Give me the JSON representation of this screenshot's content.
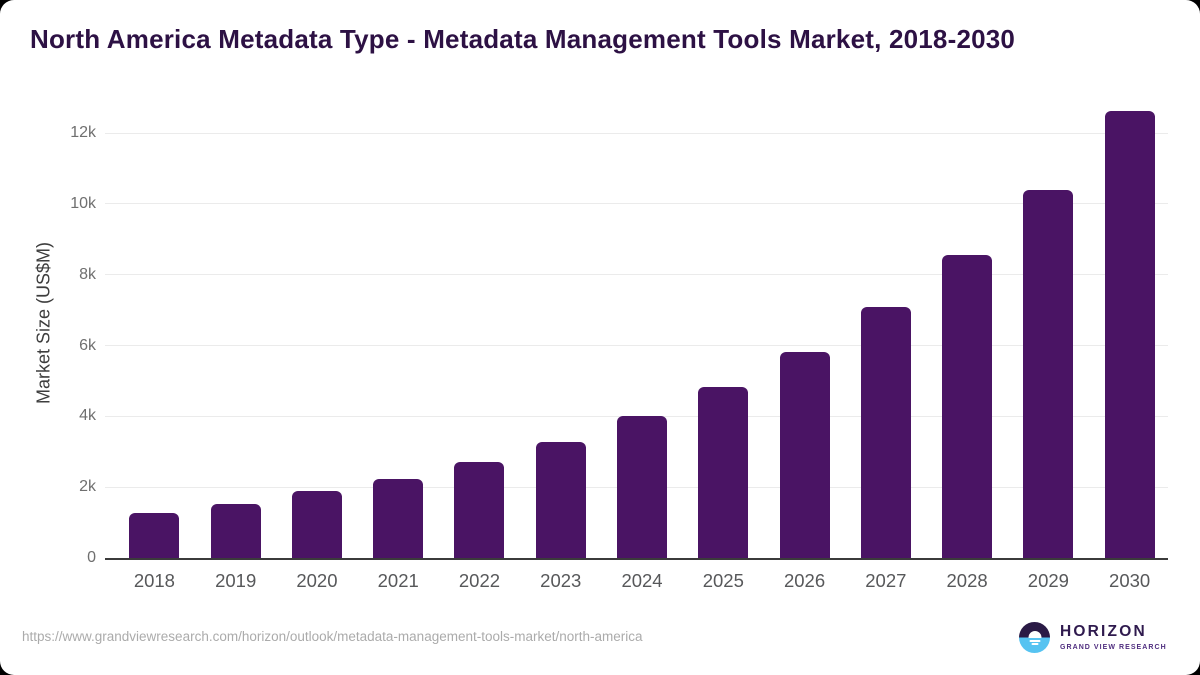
{
  "title": "North America Metadata Type - Metadata Management Tools Market, 2018-2030",
  "chart_data": {
    "type": "bar",
    "title": "North America Metadata Type - Metadata Management Tools Market, 2018-2030",
    "categories": [
      "2018",
      "2019",
      "2020",
      "2021",
      "2022",
      "2023",
      "2024",
      "2025",
      "2026",
      "2027",
      "2028",
      "2029",
      "2030"
    ],
    "values": [
      1280,
      1520,
      1880,
      2240,
      2720,
      3270,
      4000,
      4840,
      5830,
      7090,
      8550,
      10390,
      12620
    ],
    "xlabel": "",
    "ylabel": "Market Size (US$M)",
    "ylim": [
      0,
      12000
    ],
    "ytick_labels": [
      "0",
      "2k",
      "4k",
      "6k",
      "8k",
      "10k",
      "12k"
    ],
    "ytick_values": [
      0,
      2000,
      4000,
      6000,
      8000,
      10000,
      12000
    ],
    "grid": true,
    "legend": "none",
    "bar_color": "#4a1464"
  },
  "footer": {
    "source_url": "https://www.grandviewresearch.com/horizon/outlook/metadata-management-tools-market/north-america",
    "logo": {
      "brand": "HORIZON",
      "sub_brand": "GRAND VIEW RESEARCH"
    }
  },
  "colors": {
    "bar": "#4a1464",
    "title_text": "#2d1144",
    "logo_dark": "#2a1a45",
    "logo_blue": "#56c3f1",
    "axis_line": "#3b3b3b",
    "gridline": "#ebebeb"
  }
}
